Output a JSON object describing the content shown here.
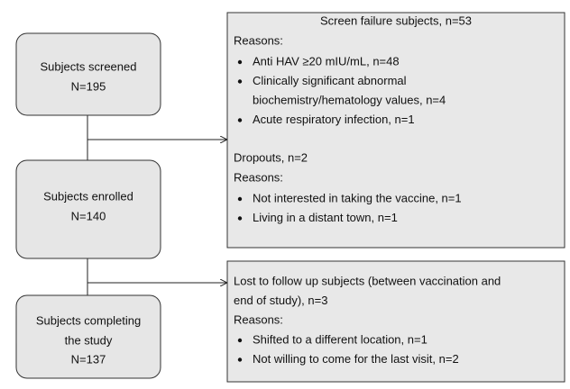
{
  "nodes": [
    {
      "lines": [
        "Subjects screened",
        "N=195"
      ]
    },
    {
      "lines": [
        "Subjects enrolled",
        "N=140"
      ]
    },
    {
      "lines": [
        "Subjects completing",
        "the study",
        "N=137"
      ]
    }
  ],
  "screen_failure": {
    "title": "Screen failure subjects, n=53",
    "reasons_label": "Reasons:",
    "reasons": [
      [
        "Anti HAV ≥20 mIU/mL, n=48"
      ],
      [
        "Clinically significant abnormal",
        "biochemistry/hematology values, n=4"
      ],
      [
        "Acute respiratory infection, n=1"
      ]
    ]
  },
  "dropouts": {
    "title": "Dropouts, n=2",
    "reasons_label": "Reasons:",
    "reasons": [
      [
        "Not interested in taking the vaccine, n=1"
      ],
      [
        "Living in a distant town, n=1"
      ]
    ]
  },
  "lost_to_follow_up": {
    "title_lines": [
      "Lost to follow up subjects (between vaccination and",
      "end of study), n=3"
    ],
    "reasons_label": "Reasons:",
    "reasons": [
      [
        "Shifted to a different location, n=1"
      ],
      [
        "Not willing to come for the last visit, n=2"
      ]
    ]
  }
}
